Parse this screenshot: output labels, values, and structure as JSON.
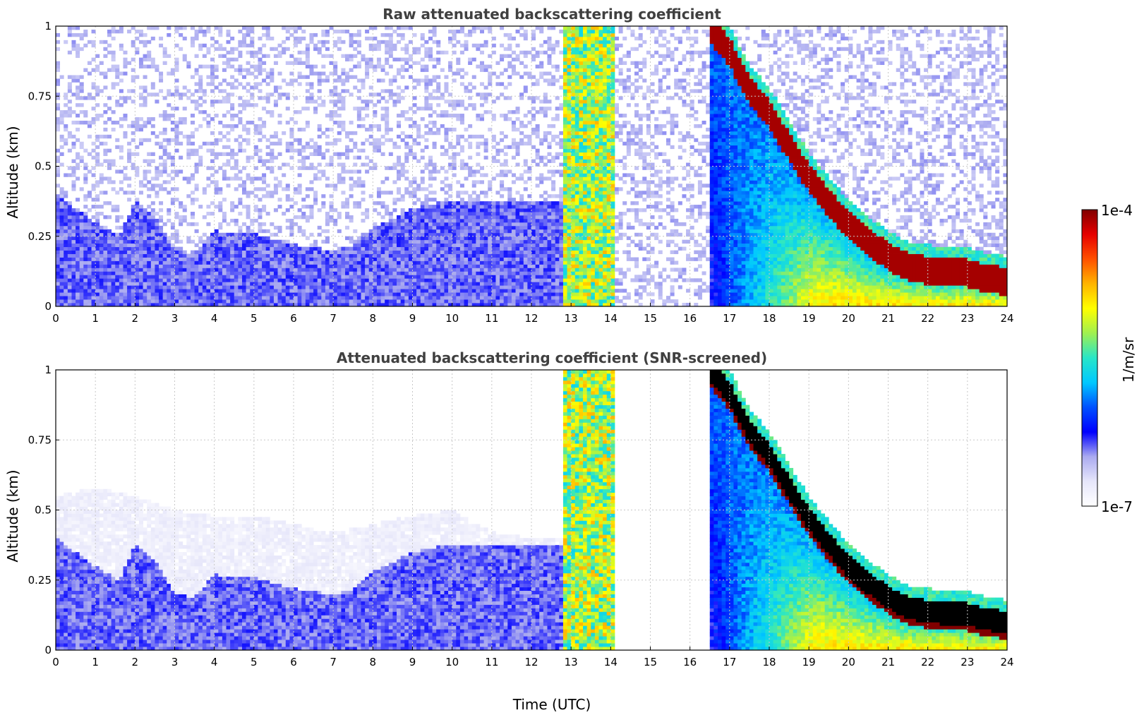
{
  "chart_data": [
    {
      "type": "heatmap",
      "title": "Raw attenuated backscattering coefficient",
      "xlabel": "",
      "ylabel": "Altitude (km)",
      "xlim": [
        0,
        24
      ],
      "ylim": [
        0,
        1
      ],
      "x_ticks": [
        "0",
        "1",
        "2",
        "3",
        "4",
        "5",
        "6",
        "7",
        "8",
        "9",
        "10",
        "11",
        "12",
        "13",
        "14",
        "15",
        "16",
        "17",
        "18",
        "19",
        "20",
        "21",
        "22",
        "23",
        "24"
      ],
      "y_ticks": [
        "0",
        "0.25",
        "0.5",
        "0.75",
        "1"
      ],
      "grid": true,
      "features": [
        {
          "kind": "noise",
          "from_time": 0,
          "to_time": 24,
          "top_km": 1.0,
          "level": 0.12
        },
        {
          "kind": "boundary_layer",
          "times": [
            0,
            1,
            1.6,
            2,
            2.6,
            3,
            3.5,
            4,
            5,
            6,
            7,
            7.5,
            8,
            9,
            10,
            11,
            12,
            12.8
          ],
          "tops_km": [
            0.4,
            0.3,
            0.25,
            0.38,
            0.3,
            0.2,
            0.19,
            0.27,
            0.26,
            0.22,
            0.2,
            0.22,
            0.28,
            0.35,
            0.38,
            0.38,
            0.38,
            0.38
          ],
          "level": 0.16
        },
        {
          "kind": "precipitation",
          "from_time": 12.85,
          "to_time": 14.1,
          "level": 0.6
        },
        {
          "kind": "cloud_base",
          "times": [
            16.5,
            17,
            17.5,
            18,
            18.5,
            19,
            19.5,
            20,
            20.5,
            21,
            21.5,
            22,
            22.5,
            23,
            23.5,
            24
          ],
          "heights_km": [
            1.0,
            0.92,
            0.78,
            0.7,
            0.58,
            0.47,
            0.38,
            0.3,
            0.24,
            0.19,
            0.15,
            0.14,
            0.13,
            0.13,
            0.11,
            0.1
          ],
          "level": 0.97
        }
      ]
    },
    {
      "type": "heatmap",
      "title": "Attenuated backscattering coefficient (SNR-screened)",
      "xlabel": "Time (UTC)",
      "ylabel": "Altitude (km)",
      "xlim": [
        0,
        24
      ],
      "ylim": [
        0,
        1
      ],
      "x_ticks": [
        "0",
        "1",
        "2",
        "3",
        "4",
        "5",
        "6",
        "7",
        "8",
        "9",
        "10",
        "11",
        "12",
        "13",
        "14",
        "15",
        "16",
        "17",
        "18",
        "19",
        "20",
        "21",
        "22",
        "23",
        "24"
      ],
      "y_ticks": [
        "0",
        "0.25",
        "0.5",
        "0.75",
        "1"
      ],
      "grid": true,
      "features": [
        {
          "kind": "screened_haze",
          "times": [
            0,
            1,
            2,
            3,
            4,
            5,
            6,
            7,
            8,
            9,
            10,
            11,
            12
          ],
          "tops_km": [
            0.55,
            0.58,
            0.55,
            0.5,
            0.48,
            0.48,
            0.45,
            0.42,
            0.45,
            0.48,
            0.5,
            0.42,
            0.4
          ],
          "level": 0.03
        },
        {
          "kind": "boundary_layer",
          "times": [
            0,
            1,
            1.6,
            2,
            2.6,
            3,
            3.5,
            4,
            5,
            6,
            7,
            7.5,
            8,
            9,
            10,
            11,
            12,
            12.8
          ],
          "tops_km": [
            0.4,
            0.3,
            0.25,
            0.38,
            0.3,
            0.2,
            0.19,
            0.27,
            0.26,
            0.22,
            0.2,
            0.22,
            0.28,
            0.35,
            0.38,
            0.38,
            0.38,
            0.38
          ],
          "level": 0.16
        },
        {
          "kind": "precipitation",
          "from_time": 12.85,
          "to_time": 14.1,
          "level": 0.6
        },
        {
          "kind": "cloud_base",
          "times": [
            16.5,
            17,
            17.5,
            18,
            18.5,
            19,
            19.5,
            20,
            20.5,
            21,
            21.5,
            22,
            22.5,
            23,
            23.5,
            24
          ],
          "heights_km": [
            1.0,
            0.92,
            0.78,
            0.7,
            0.58,
            0.47,
            0.38,
            0.3,
            0.24,
            0.19,
            0.15,
            0.14,
            0.13,
            0.13,
            0.11,
            0.1
          ],
          "level": 1.0,
          "saturated_color": "#000000"
        }
      ]
    }
  ],
  "colorbar": {
    "max_label": "1e-4",
    "min_label": "1e-7",
    "unit_label": "1/m/sr",
    "colormap": [
      "#ffffff",
      "#e6e6fa",
      "#aaaaf0",
      "#0000ff",
      "#0050ff",
      "#00c8ff",
      "#28e6c8",
      "#a0f050",
      "#ffff00",
      "#ffb400",
      "#ff5000",
      "#e60000",
      "#800000"
    ]
  }
}
